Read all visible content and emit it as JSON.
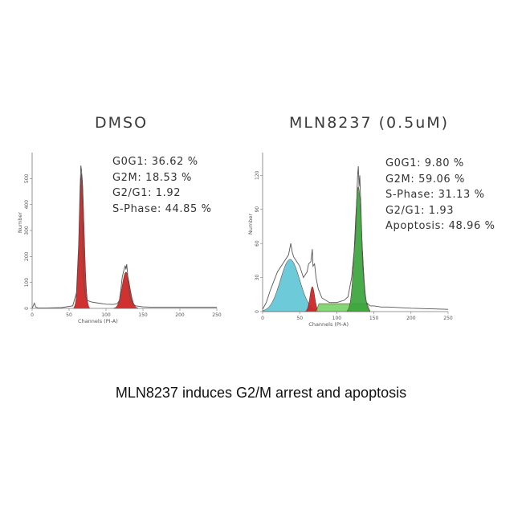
{
  "caption": "MLN8237 induces G2/M arrest and apoptosis",
  "chart_data": [
    {
      "type": "area",
      "title": "DMSO",
      "xlabel": "Channels (PI-A)",
      "ylabel": "Number",
      "xlim": [
        0,
        250
      ],
      "ylim": [
        0,
        600
      ],
      "xticks": [
        "0",
        "50",
        "100",
        "150",
        "200",
        "250"
      ],
      "yticks": [
        "0",
        "100",
        "200",
        "300",
        "400",
        "500"
      ],
      "grid": false,
      "stats": [
        "G0G1: 36.62 %",
        "G2M: 18.53 %",
        "G2/G1: 1.92",
        "S-Phase: 44.85 %"
      ],
      "series": [
        {
          "role": "histogram",
          "color": "#555555",
          "x": [
            0,
            3,
            5,
            8,
            20,
            40,
            55,
            60,
            63,
            65,
            66,
            67,
            68,
            69,
            70,
            72,
            75,
            80,
            90,
            100,
            110,
            115,
            118,
            120,
            122,
            124,
            126,
            127,
            128,
            129,
            130,
            132,
            135,
            140,
            150,
            160,
            170,
            200,
            250
          ],
          "y": [
            0,
            20,
            5,
            2,
            2,
            3,
            10,
            60,
            250,
            470,
            550,
            530,
            400,
            200,
            100,
            45,
            30,
            25,
            20,
            16,
            15,
            18,
            30,
            70,
            120,
            145,
            165,
            150,
            170,
            140,
            100,
            50,
            22,
            10,
            6,
            5,
            5,
            5,
            5
          ]
        },
        {
          "role": "G0G1 fit",
          "color": "#cc1f1f",
          "mu": 67,
          "sigma": 3.3,
          "amp": 520
        },
        {
          "role": "G2M fit",
          "color": "#cc1f1f",
          "mu": 127,
          "sigma": 5.2,
          "amp": 140
        }
      ]
    },
    {
      "type": "area",
      "title": "MLN8237 (0.5uM)",
      "xlabel": "Channels (PI-A)",
      "ylabel": "Number",
      "xlim": [
        0,
        250
      ],
      "ylim": [
        0,
        140
      ],
      "xticks": [
        "0",
        "50",
        "100",
        "150",
        "200",
        "250"
      ],
      "yticks": [
        "0",
        "30",
        "60",
        "90",
        "120"
      ],
      "grid": false,
      "stats": [
        "G0G1: 9.80 %",
        "G2M: 59.06 %",
        "S-Phase: 31.13 %",
        "G2/G1: 1.93",
        "Apoptosis: 48.96 %"
      ],
      "series": [
        {
          "role": "histogram",
          "color": "#555555",
          "x": [
            0,
            5,
            10,
            20,
            30,
            35,
            38,
            40,
            42,
            45,
            50,
            55,
            60,
            62,
            65,
            67,
            68,
            70,
            72,
            75,
            80,
            90,
            100,
            110,
            115,
            120,
            125,
            127,
            128,
            129,
            130,
            131,
            132,
            133,
            135,
            138,
            140,
            145,
            150,
            160,
            170,
            200,
            250
          ],
          "y": [
            2,
            8,
            18,
            35,
            45,
            50,
            60,
            52,
            48,
            45,
            40,
            30,
            35,
            42,
            44,
            55,
            40,
            42,
            30,
            20,
            12,
            8,
            8,
            10,
            13,
            30,
            65,
            100,
            120,
            128,
            110,
            120,
            100,
            80,
            40,
            15,
            8,
            5,
            5,
            4,
            4,
            3,
            2
          ]
        },
        {
          "role": "Apoptosis fit",
          "color": "#5fc6d6",
          "mu": 37,
          "sigma": 13,
          "amp": 46
        },
        {
          "role": "G0G1 fit",
          "color": "#cc1f1f",
          "mu": 67,
          "sigma": 3.2,
          "amp": 22
        },
        {
          "role": "S-Phase fit",
          "color": "#7ad36a",
          "from": 72,
          "to": 145,
          "level": 7
        },
        {
          "role": "G2M fit",
          "color": "#3aa43a",
          "mu": 129,
          "sigma": 4.8,
          "amp": 110
        }
      ]
    }
  ]
}
